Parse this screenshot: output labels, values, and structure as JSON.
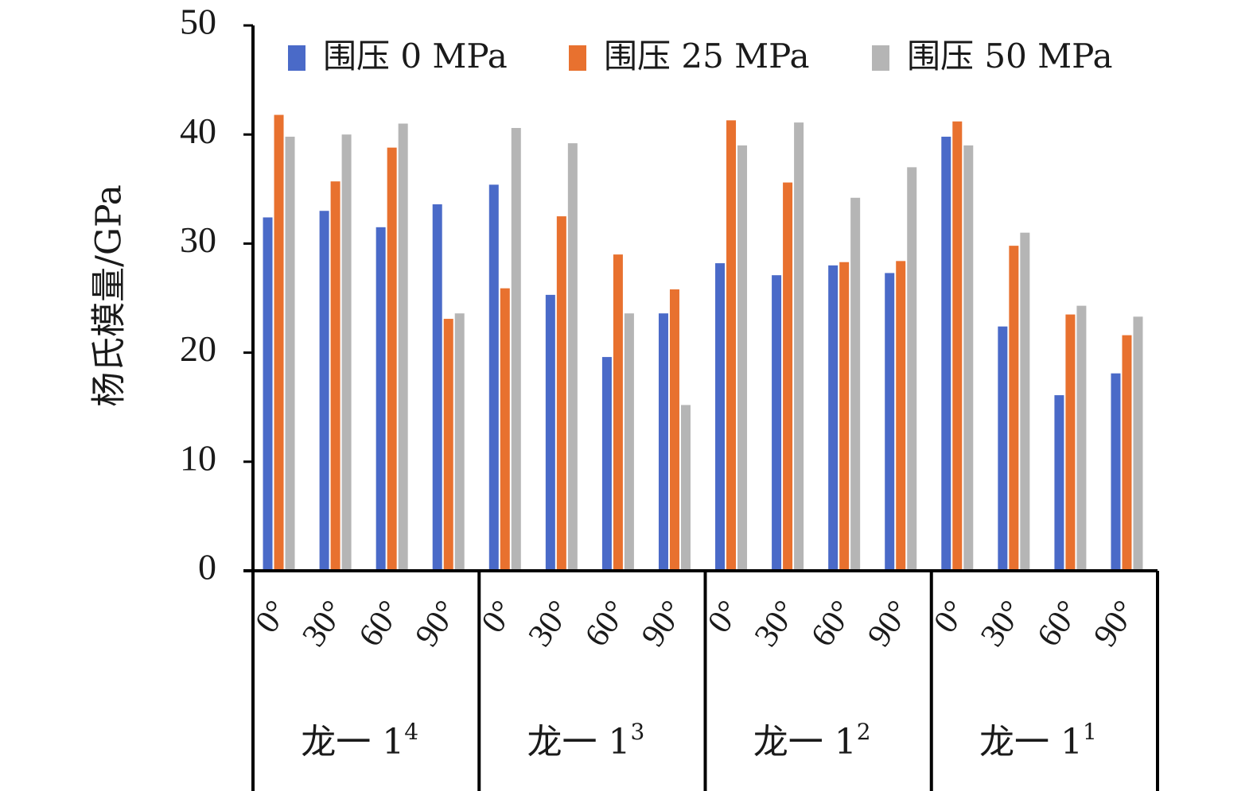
{
  "chart_data": {
    "type": "bar",
    "ylabel": "杨氏模量/GPa",
    "ylim": [
      0,
      50
    ],
    "yticks": [
      "0",
      "10",
      "20",
      "30",
      "40",
      "50"
    ],
    "grid": false,
    "legend_position": "top",
    "groups": [
      {
        "name": "龙一 1",
        "sup": "4"
      },
      {
        "name": "龙一 1",
        "sup": "3"
      },
      {
        "name": "龙一 1",
        "sup": "2"
      },
      {
        "name": "龙一 1",
        "sup": "1"
      }
    ],
    "categories": [
      "0°",
      "30°",
      "60°",
      "90°",
      "0°",
      "30°",
      "60°",
      "90°",
      "0°",
      "30°",
      "60°",
      "90°",
      "0°",
      "30°",
      "60°",
      "90°"
    ],
    "series": [
      {
        "name": "围压 0 MPa",
        "color": "#4a6ac8",
        "values": [
          32.4,
          33.0,
          31.5,
          33.6,
          35.4,
          25.3,
          19.6,
          23.6,
          28.2,
          27.1,
          28.0,
          27.3,
          39.8,
          22.4,
          16.1,
          18.1
        ]
      },
      {
        "name": "围压 25 MPa",
        "color": "#e8712f",
        "values": [
          41.8,
          35.7,
          38.8,
          23.1,
          25.9,
          32.5,
          29.0,
          25.8,
          41.3,
          35.6,
          28.3,
          28.4,
          41.2,
          29.8,
          23.5,
          21.6
        ]
      },
      {
        "name": "围压 50 MPa",
        "color": "#b5b5b5",
        "values": [
          39.8,
          40.0,
          41.0,
          23.6,
          40.6,
          39.2,
          23.6,
          15.2,
          39.0,
          41.1,
          34.2,
          37.0,
          39.0,
          31.0,
          24.3,
          23.3
        ]
      }
    ]
  }
}
